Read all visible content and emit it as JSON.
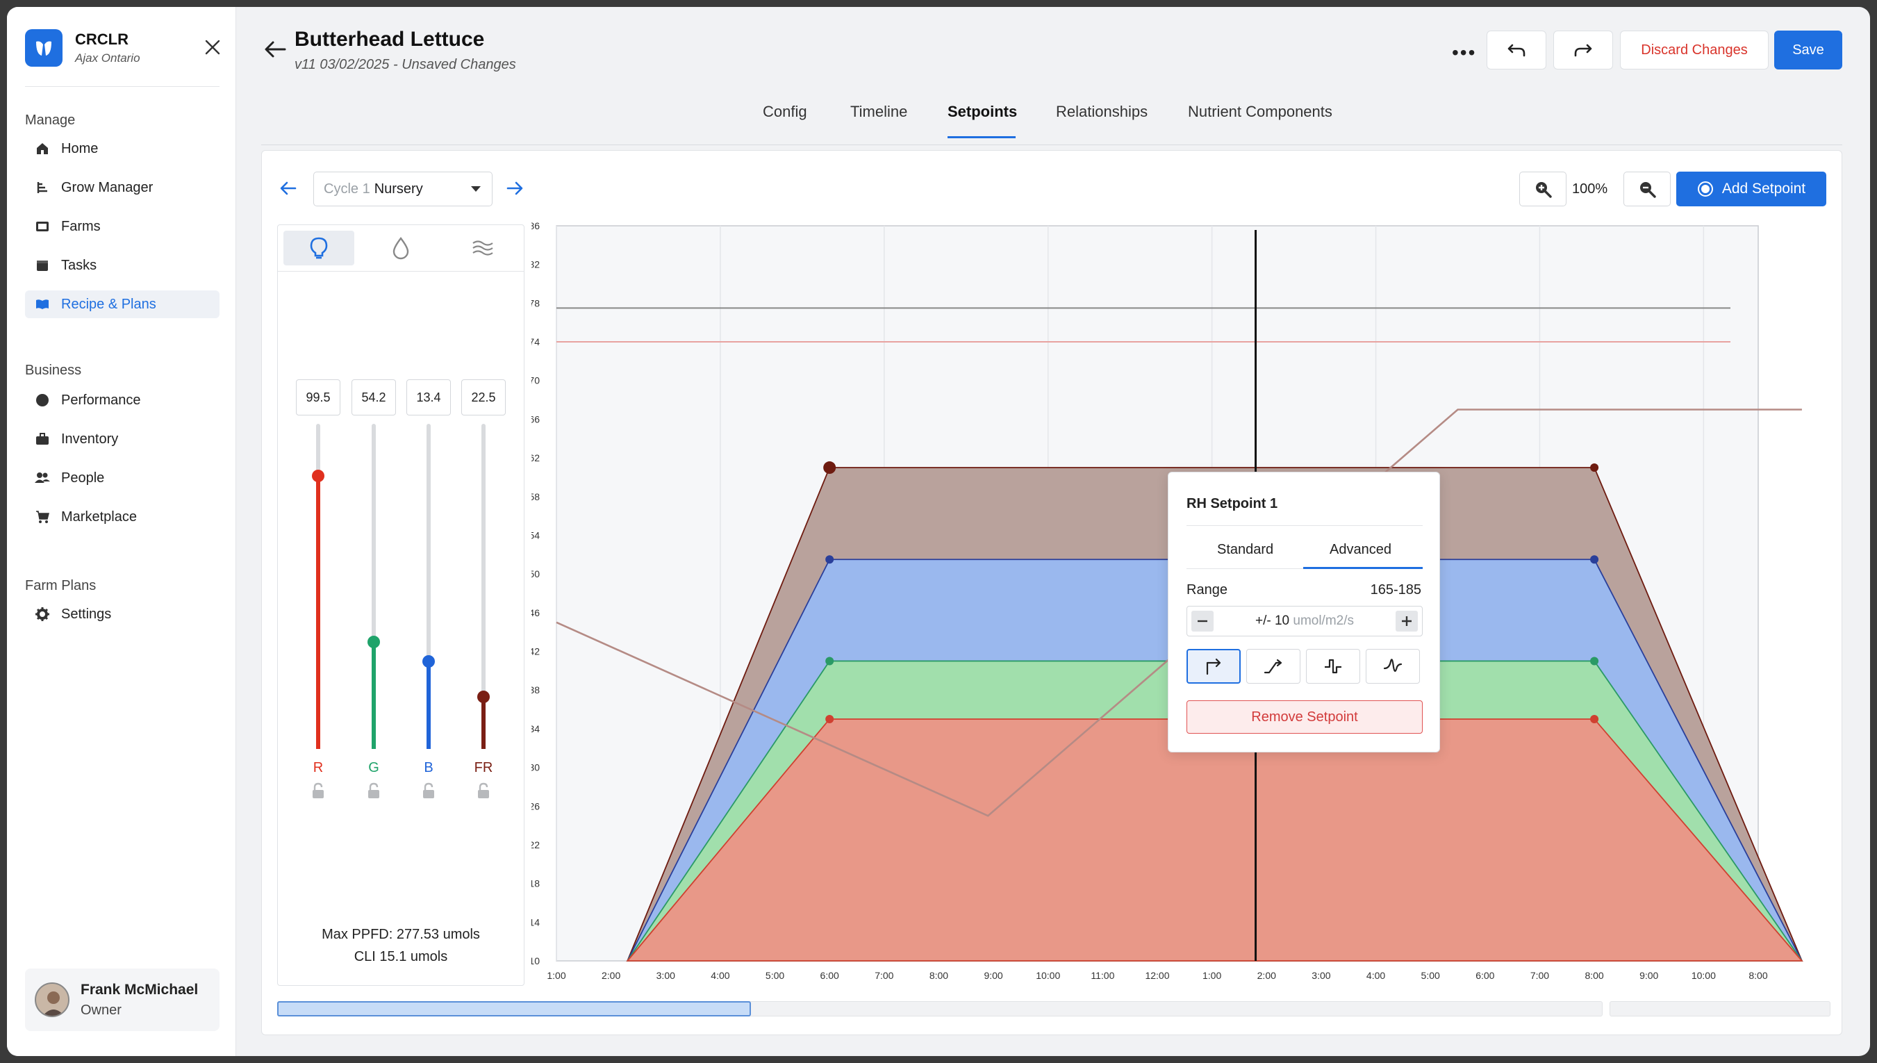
{
  "brand": {
    "name": "CRCLR",
    "location": "Ajax Ontario"
  },
  "sidebar": {
    "sections": [
      {
        "label": "Manage",
        "items": [
          {
            "label": "Home",
            "icon": "home-icon"
          },
          {
            "label": "Grow Manager",
            "icon": "grow-icon"
          },
          {
            "label": "Farms",
            "icon": "farms-icon"
          },
          {
            "label": "Tasks",
            "icon": "tasks-icon"
          },
          {
            "label": "Recipe & Plans",
            "icon": "book-icon",
            "active": true
          }
        ]
      },
      {
        "label": "Business",
        "items": [
          {
            "label": "Performance",
            "icon": "performance-icon"
          },
          {
            "label": "Inventory",
            "icon": "briefcase-icon"
          },
          {
            "label": "People",
            "icon": "people-icon"
          },
          {
            "label": "Marketplace",
            "icon": "cart-icon"
          }
        ]
      },
      {
        "label": "Farm Plans",
        "items": [
          {
            "label": "Settings",
            "icon": "gear-icon"
          }
        ]
      }
    ]
  },
  "user": {
    "name": "Frank McMichael",
    "role": "Owner"
  },
  "header": {
    "title": "Butterhead Lettuce",
    "subtitle": "v11 03/02/2025 - Unsaved Changes",
    "discard_label": "Discard Changes",
    "save_label": "Save"
  },
  "tabs": [
    {
      "label": "Config"
    },
    {
      "label": "Timeline"
    },
    {
      "label": "Setpoints",
      "active": true
    },
    {
      "label": "Relationships"
    },
    {
      "label": "Nutrient Components"
    }
  ],
  "toolbar": {
    "cycle_number": "Cycle 1",
    "cycle_name": "Nursery",
    "zoom": "100%",
    "add_setpoint_label": "Add Setpoint"
  },
  "light_panel": {
    "channels": [
      {
        "label": "R",
        "value": "99.5",
        "level": 0.84,
        "color": "#e0301e"
      },
      {
        "label": "G",
        "value": "54.2",
        "level": 0.33,
        "color": "#1fa36a"
      },
      {
        "label": "B",
        "value": "13.4",
        "level": 0.27,
        "color": "#2064d8"
      },
      {
        "label": "FR",
        "value": "22.5",
        "level": 0.16,
        "color": "#7a1f14"
      }
    ],
    "max_ppfd": "Max PPFD:  277.53 umols",
    "cli": "CLI  15.1 umols"
  },
  "popup": {
    "title": "RH Setpoint 1",
    "tab_standard": "Standard",
    "tab_advanced": "Advanced",
    "range_label": "Range",
    "range_value": "165-185",
    "stepper_value": "+/- 10",
    "stepper_unit": "umol/m2/s",
    "remove_label": "Remove Setpoint"
  },
  "chart_data": {
    "type": "area",
    "y_ticks": [
      86,
      82,
      78,
      74,
      70,
      66,
      62,
      58,
      54,
      50,
      46,
      42,
      38,
      34,
      30,
      26,
      22,
      18,
      14,
      10
    ],
    "x_ticks": [
      "1:00",
      "2:00",
      "3:00",
      "4:00",
      "5:00",
      "6:00",
      "7:00",
      "8:00",
      "9:00",
      "10:00",
      "11:00",
      "12:00",
      "1:00",
      "2:00",
      "3:00",
      "4:00",
      "5:00",
      "6:00",
      "7:00",
      "8:00",
      "9:00",
      "10:00",
      "8:00"
    ],
    "ylim": [
      10,
      86
    ],
    "series": [
      {
        "color": "#b9a29c",
        "stroke": "#6e1b10",
        "x": [
          1.3,
          5.0,
          19.0,
          22.8
        ],
        "y": [
          10,
          61,
          61,
          10
        ]
      },
      {
        "color": "#9ab8ee",
        "stroke": "#2a3f9a",
        "x": [
          1.3,
          5.0,
          19.0,
          22.8
        ],
        "y": [
          10,
          51.5,
          51.5,
          10
        ]
      },
      {
        "color": "#a1dfac",
        "stroke": "#2a9a66",
        "x": [
          1.3,
          5.0,
          19.0,
          22.8
        ],
        "y": [
          10,
          41,
          41,
          10
        ]
      },
      {
        "color": "#e89888",
        "stroke": "#d04030",
        "x": [
          1.3,
          5.0,
          19.0,
          22.8
        ],
        "y": [
          10,
          35,
          35,
          10
        ]
      }
    ],
    "lines": [
      {
        "color": "#b58b85",
        "x": [
          0,
          7.9,
          16.5,
          22.8
        ],
        "y": [
          45,
          25,
          67,
          67
        ]
      }
    ],
    "reference_lines": [
      {
        "y": 77.5,
        "color": "#888888"
      },
      {
        "y": 74,
        "color": "#e8a3a0"
      }
    ],
    "cursor_x": 12.8
  }
}
